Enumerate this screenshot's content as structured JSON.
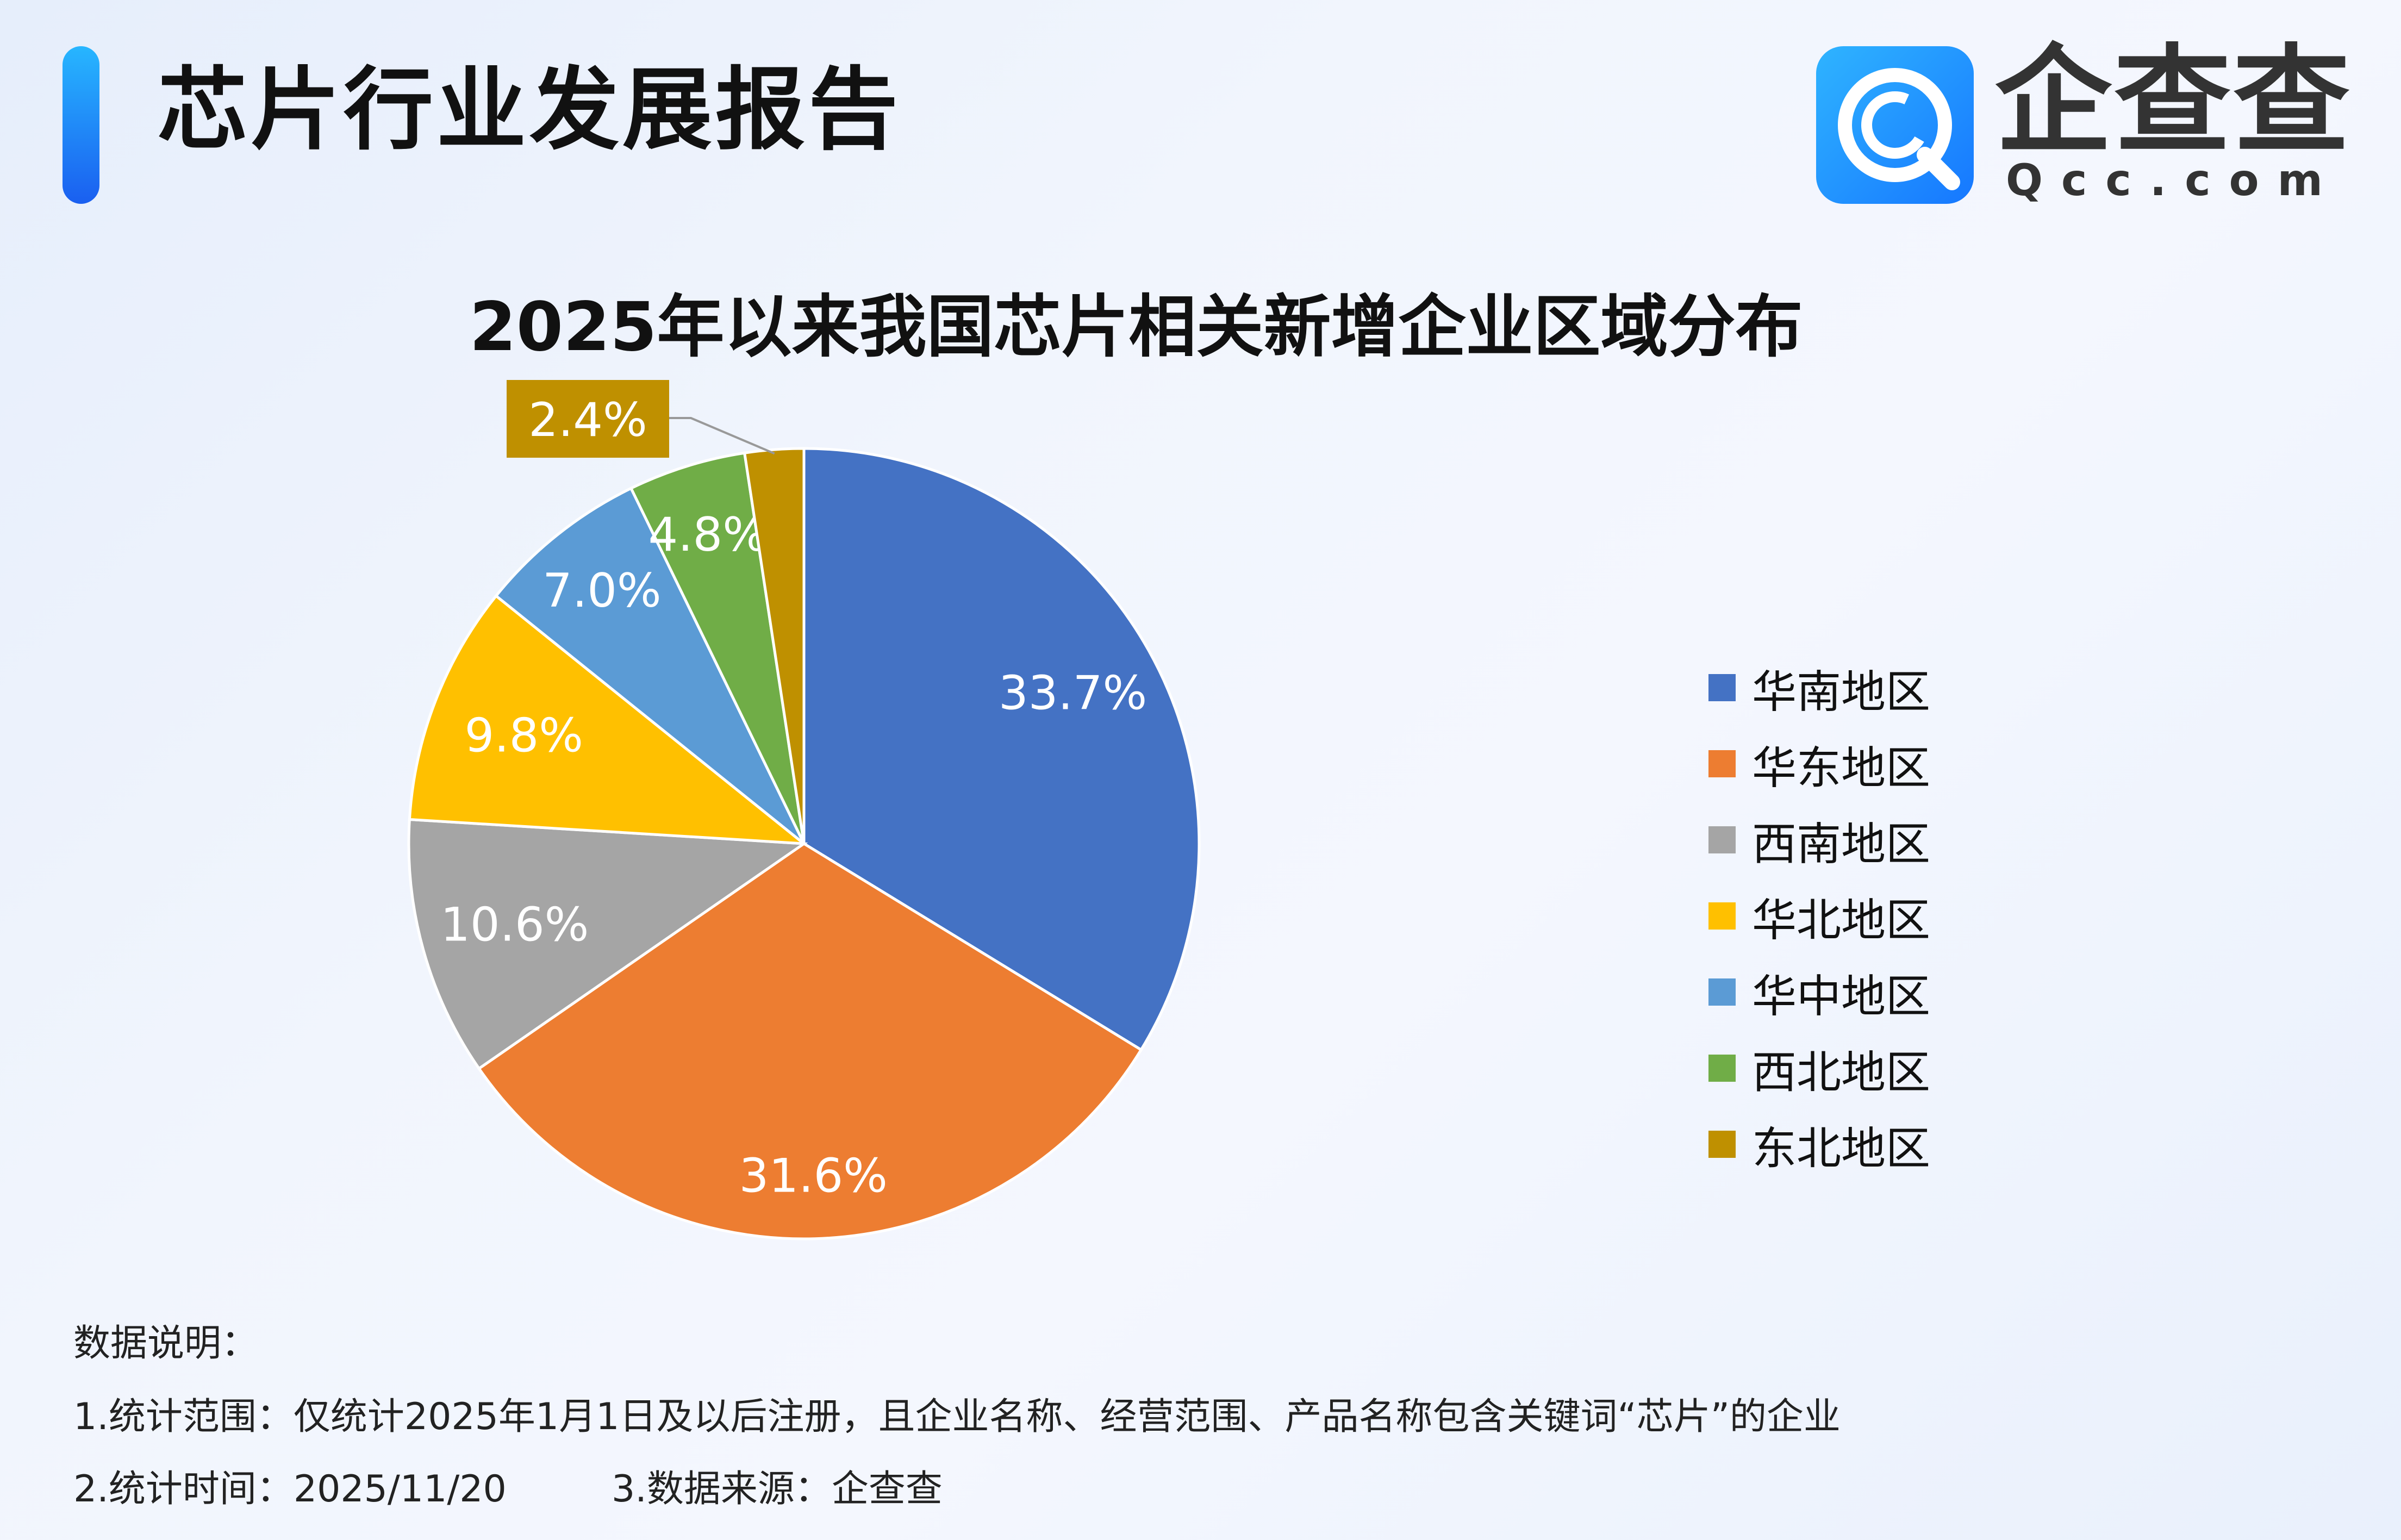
{
  "header": {
    "title": "芯片行业发展报告"
  },
  "logo": {
    "name": "企查查",
    "domain": "Qcc.com"
  },
  "chart_data": {
    "type": "pie",
    "title": "2025年以来我国芯片相关新增企业区域分布",
    "categories": [
      "华南地区",
      "华东地区",
      "西南地区",
      "华北地区",
      "华中地区",
      "西北地区",
      "东北地区"
    ],
    "values": [
      33.7,
      31.6,
      10.6,
      9.8,
      7.0,
      4.8,
      2.4
    ],
    "labels": [
      "33.7%",
      "31.6%",
      "10.6%",
      "9.8%",
      "7.0%",
      "4.8%",
      "2.4%"
    ],
    "colors": [
      "#4472C4",
      "#ED7D31",
      "#A5A5A5",
      "#FFC000",
      "#5B9BD5",
      "#70AD47",
      "#BF9000"
    ],
    "start": "12 o'clock, clockwise",
    "legend": "right"
  },
  "footer": {
    "heading": "数据说明：",
    "line1": "1.统计范围：仅统计2025年1月1日及以后注册，且企业名称、经营范围、产品名称包含关键词“芯片”的企业",
    "line2a": "2.统计时间：2025/11/20",
    "line2b": "3.数据来源：企查查"
  }
}
